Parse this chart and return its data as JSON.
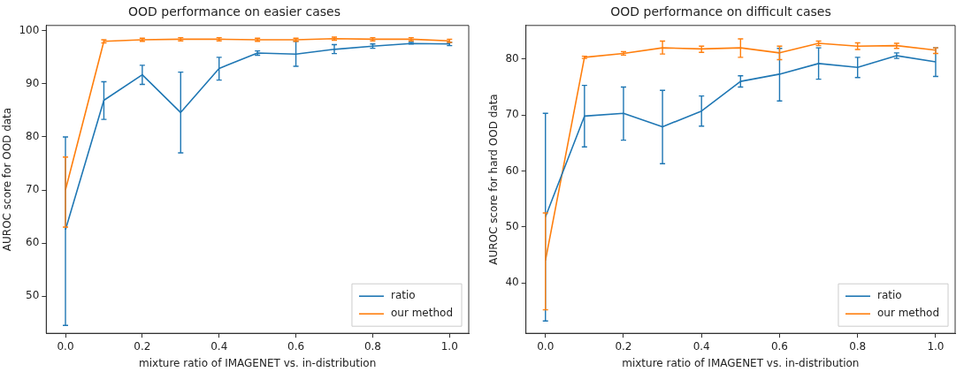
{
  "chart_data": [
    {
      "type": "line",
      "title": "OOD performance on easier cases",
      "xlabel": "mixture ratio of IMAGENET vs. in-distribution",
      "ylabel": "AUROC score for OOD data",
      "x": [
        0,
        0.1,
        0.2,
        0.3,
        0.4,
        0.5,
        0.6,
        0.7,
        0.8,
        0.9,
        1.0
      ],
      "xlim": [
        -0.05,
        1.05
      ],
      "xticks": [
        {
          "value": 0,
          "label": "0.0"
        },
        {
          "value": 0.2,
          "label": "0.2"
        },
        {
          "value": 0.4,
          "label": "0.4"
        },
        {
          "value": 0.6,
          "label": "0.6"
        },
        {
          "value": 0.8,
          "label": "0.8"
        },
        {
          "value": 1,
          "label": "1.0"
        }
      ],
      "ylim": [
        43,
        101
      ],
      "yticks": [
        50,
        60,
        70,
        80,
        90,
        100
      ],
      "grid": false,
      "legend": "bottom right",
      "line_style": "solid",
      "series": [
        {
          "name": "ratio",
          "color": "#1f77b4",
          "values": [
            62.5,
            86.9,
            91.7,
            84.6,
            92.9,
            95.8,
            95.6,
            96.5,
            97.1,
            97.6,
            97.5
          ],
          "errors": [
            [
              44.5,
              80
            ],
            [
              83.3,
              90.4
            ],
            [
              89.9,
              93.5
            ],
            [
              77,
              92.2
            ],
            [
              90.7,
              95
            ],
            [
              95.4,
              96.2
            ],
            [
              93.3,
              98
            ],
            [
              95.7,
              97.4
            ],
            [
              96.7,
              97.5
            ],
            [
              97.5,
              97.8
            ],
            [
              97.2,
              97.8
            ]
          ]
        },
        {
          "name": "our method",
          "color": "#ff7f0e",
          "values": [
            70,
            98,
            98.3,
            98.4,
            98.4,
            98.3,
            98.3,
            98.5,
            98.4,
            98.4,
            98.1
          ],
          "errors": [
            [
              63,
              76.2
            ],
            0.3,
            0.3,
            0.3,
            0.3,
            0.3,
            0.3,
            0.3,
            0.3,
            0.3,
            0.3
          ]
        }
      ]
    },
    {
      "type": "line",
      "title": "OOD performance on difficult cases",
      "xlabel": "mixture ratio of IMAGENET vs. in-distribution",
      "ylabel": "AUROC score for hard OOD data",
      "x": [
        0,
        0.1,
        0.2,
        0.3,
        0.4,
        0.5,
        0.6,
        0.7,
        0.8,
        0.9,
        1.0
      ],
      "xlim": [
        -0.05,
        1.05
      ],
      "xticks": [
        {
          "value": 0,
          "label": "0.0"
        },
        {
          "value": 0.2,
          "label": "0.2"
        },
        {
          "value": 0.4,
          "label": "0.4"
        },
        {
          "value": 0.6,
          "label": "0.6"
        },
        {
          "value": 0.8,
          "label": "0.8"
        },
        {
          "value": 1,
          "label": "1.0"
        }
      ],
      "ylim": [
        31,
        86
      ],
      "yticks": [
        40,
        50,
        60,
        70,
        80
      ],
      "grid": false,
      "legend": "bottom right",
      "line_style": "solid",
      "series": [
        {
          "name": "ratio",
          "color": "#1f77b4",
          "values": [
            51.8,
            69.8,
            70.3,
            67.9,
            70.7,
            76,
            77.3,
            79.2,
            78.5,
            80.6,
            79.5
          ],
          "errors": [
            [
              33.2,
              70.3
            ],
            [
              64.3,
              75.3
            ],
            [
              65.5,
              75
            ],
            [
              61.3,
              74.4
            ],
            [
              68,
              73.4
            ],
            [
              75,
              77
            ],
            [
              72.5,
              81.9
            ],
            [
              76.4,
              82
            ],
            [
              76.7,
              80.3
            ],
            [
              80.1,
              81.1
            ],
            [
              76.9,
              82
            ]
          ]
        },
        {
          "name": "our method",
          "color": "#ff7f0e",
          "values": [
            44,
            80.3,
            81,
            82,
            81.8,
            82,
            81.1,
            82.8,
            82.3,
            82.4,
            81.6
          ],
          "errors": [
            [
              35.2,
              52.5
            ],
            [
              80.1,
              80.5
            ],
            [
              80.7,
              81.3
            ],
            [
              80.9,
              83.2
            ],
            [
              81.2,
              82.3
            ],
            [
              80.3,
              83.6
            ],
            [
              79.9,
              82.3
            ],
            [
              82.4,
              83.2
            ],
            [
              81.7,
              82.9
            ],
            [
              81.9,
              82.8
            ],
            [
              81,
              82
            ]
          ]
        }
      ]
    }
  ]
}
